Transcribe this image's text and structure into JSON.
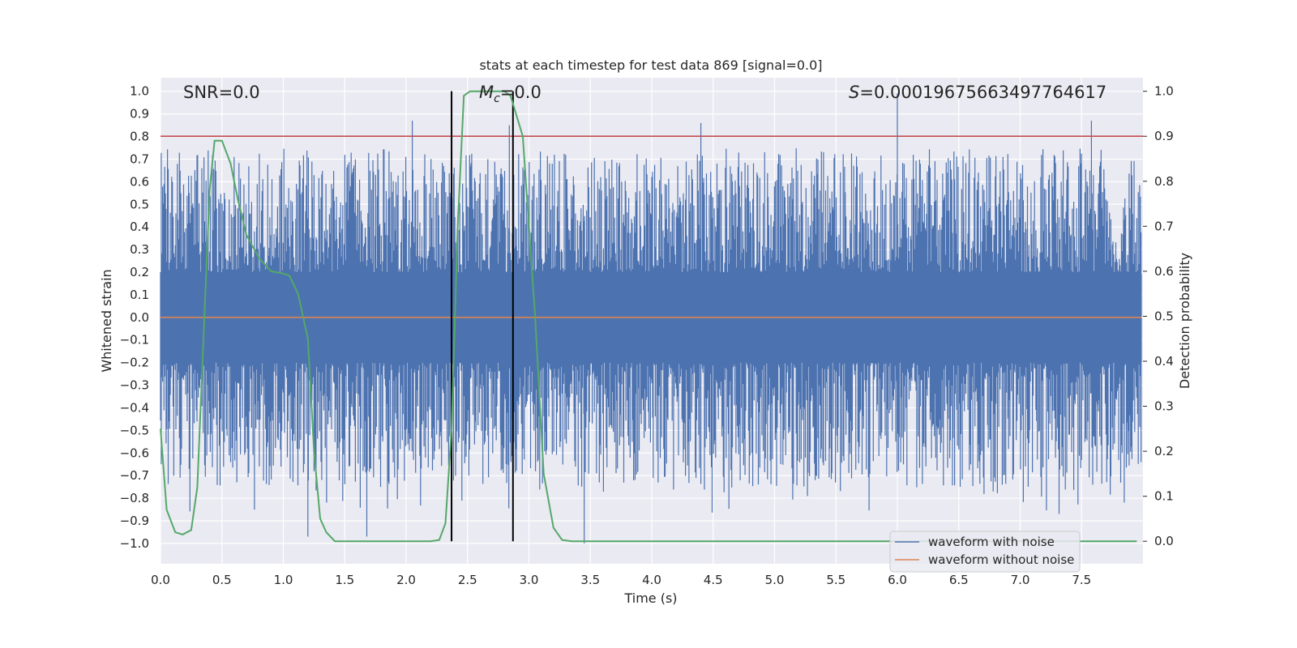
{
  "chart_data": {
    "type": "line",
    "title": "stats at each timestep for test data 869 [signal=0.0]",
    "xlabel": "Time (s)",
    "ylabel_left": "Whitened strain",
    "ylabel_right": "Detection probability",
    "xlim": [
      0.0,
      8.0
    ],
    "ylim_left": [
      -1.09,
      1.06
    ],
    "ylim_right": [
      -0.05,
      1.03
    ],
    "x_ticks": [
      "0.0",
      "0.5",
      "1.0",
      "1.5",
      "2.0",
      "2.5",
      "3.0",
      "3.5",
      "4.0",
      "4.5",
      "5.0",
      "5.5",
      "6.0",
      "6.5",
      "7.0",
      "7.5"
    ],
    "y_ticks_left": [
      "1.0",
      "0.9",
      "0.8",
      "0.7",
      "0.6",
      "0.5",
      "0.4",
      "0.3",
      "0.2",
      "0.1",
      "0.0",
      "−0.1",
      "−0.2",
      "−0.3",
      "−0.4",
      "−0.5",
      "−0.6",
      "−0.7",
      "−0.8",
      "−0.9",
      "−1.0"
    ],
    "y_ticks_right": [
      "1.0",
      "0.9",
      "0.8",
      "0.7",
      "0.6",
      "0.5",
      "0.4",
      "0.3",
      "0.2",
      "0.1",
      "0.0"
    ],
    "annotations": {
      "snr": "SNR=0.0",
      "mc_symbol": "M",
      "mc_sub": "c",
      "mc_value": "=0.0",
      "s_symbol": "S",
      "s_value": "=0.00019675663497764617"
    },
    "threshold_line": {
      "y_right": 0.9,
      "color": "#c44e52"
    },
    "vertical_lines_x": [
      2.37,
      2.87
    ],
    "series": [
      {
        "name": "waveform with noise",
        "color": "#4c72b0",
        "axis": "left",
        "envelope": {
          "upper_typical": 0.45,
          "lower_typical": -0.45,
          "max_peak": 0.99,
          "min_peak": -1.0
        }
      },
      {
        "name": "waveform without noise",
        "color": "#dd8452",
        "axis": "left",
        "constant": 0.0
      },
      {
        "name": "detection probability",
        "color": "#55a868",
        "axis": "right",
        "x": [
          0.0,
          0.05,
          0.12,
          0.18,
          0.25,
          0.3,
          0.35,
          0.4,
          0.44,
          0.5,
          0.57,
          0.63,
          0.7,
          0.8,
          0.9,
          1.0,
          1.05,
          1.12,
          1.2,
          1.25,
          1.3,
          1.35,
          1.42,
          1.5,
          1.8,
          2.1,
          2.2,
          2.27,
          2.32,
          2.37,
          2.42,
          2.47,
          2.52,
          2.6,
          2.7,
          2.8,
          2.85,
          2.95,
          3.05,
          3.12,
          3.2,
          3.27,
          3.35,
          3.45,
          4.0,
          5.0,
          6.0,
          7.0,
          7.95
        ],
        "y": [
          0.25,
          0.07,
          0.02,
          0.015,
          0.025,
          0.12,
          0.45,
          0.78,
          0.89,
          0.89,
          0.84,
          0.76,
          0.68,
          0.63,
          0.6,
          0.595,
          0.59,
          0.55,
          0.45,
          0.2,
          0.05,
          0.02,
          0.0,
          0.0,
          0.0,
          0.0,
          0.0,
          0.003,
          0.04,
          0.25,
          0.7,
          0.99,
          1.0,
          1.0,
          1.0,
          1.0,
          0.99,
          0.9,
          0.5,
          0.15,
          0.03,
          0.003,
          0.0,
          0.0,
          0.0,
          0.0,
          0.0,
          0.0,
          0.0
        ]
      }
    ],
    "legend": {
      "placement": "bottom-right",
      "entries": [
        "waveform with noise",
        "waveform without noise"
      ]
    },
    "grid": true
  }
}
